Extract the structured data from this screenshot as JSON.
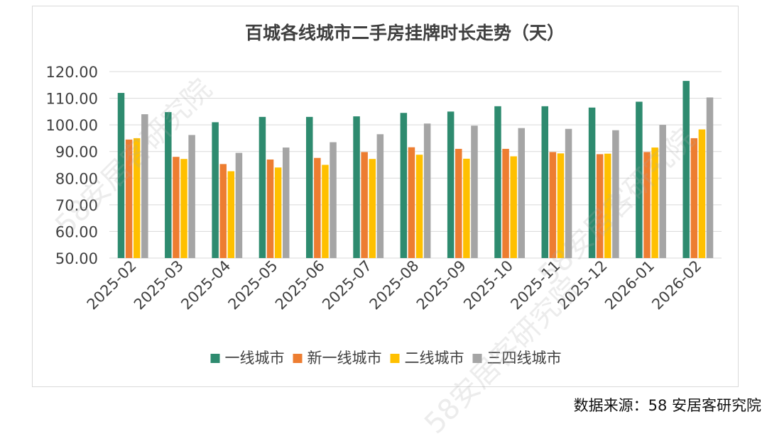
{
  "chart_data": {
    "type": "bar",
    "title": "百城各线城市二手房挂牌时长走势（天）",
    "categories": [
      "2025-02",
      "2025-03",
      "2025-04",
      "2025-05",
      "2025-06",
      "2025-07",
      "2025-08",
      "2025-09",
      "2025-10",
      "2025-11",
      "2025-12",
      "2026-01",
      "2026-02"
    ],
    "ylim": [
      50,
      120
    ],
    "yticks": [
      "50.00",
      "60.00",
      "70.00",
      "80.00",
      "90.00",
      "100.00",
      "110.00",
      "120.00"
    ],
    "grid": true,
    "legend_position": "bottom",
    "series": [
      {
        "name": "一线城市",
        "color": "#2e8b6f",
        "values": [
          112,
          104.8,
          101,
          103,
          103,
          103.2,
          104.5,
          105,
          107,
          107,
          106.5,
          108.7,
          116.5
        ]
      },
      {
        "name": "新一线城市",
        "color": "#ed7d31",
        "values": [
          94.5,
          88,
          85.3,
          87,
          87.6,
          89.8,
          91.6,
          91,
          91,
          89.8,
          89,
          89.8,
          95
        ]
      },
      {
        "name": "二线城市",
        "color": "#ffc000",
        "values": [
          95,
          87.2,
          82.6,
          84,
          85,
          87.2,
          88.8,
          87.3,
          88.2,
          89.3,
          89.2,
          91.5,
          98.3
        ]
      },
      {
        "name": "三四线城市",
        "color": "#a5a5a5",
        "values": [
          104,
          96.2,
          89.5,
          91.5,
          93.5,
          96.5,
          100.5,
          99.7,
          98.8,
          98.5,
          98,
          100,
          110.3
        ]
      }
    ]
  },
  "source_note": "数据来源：58 安居客研究院",
  "watermark": "58安居客研究院"
}
